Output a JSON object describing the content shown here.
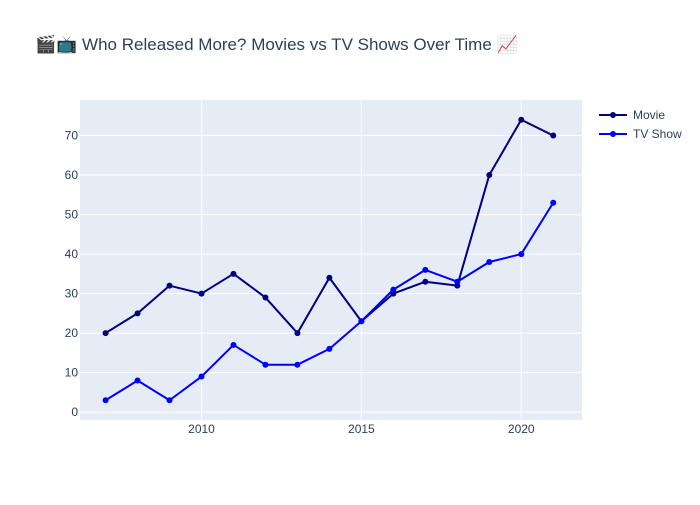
{
  "chart_data": {
    "type": "line",
    "title": "🎬📺 Who Released More? Movies vs TV Shows Over Time 📈",
    "xlabel": "",
    "ylabel": "",
    "x": [
      2007,
      2008,
      2009,
      2010,
      2011,
      2012,
      2013,
      2014,
      2015,
      2016,
      2017,
      2018,
      2019,
      2020,
      2021
    ],
    "series": [
      {
        "name": "Movie",
        "color": "#000080",
        "values": [
          20,
          25,
          32,
          30,
          35,
          29,
          20,
          34,
          23,
          30,
          33,
          32,
          60,
          74,
          70
        ]
      },
      {
        "name": "TV Show",
        "color": "#0000ff",
        "values": [
          3,
          8,
          3,
          9,
          17,
          12,
          12,
          16,
          23,
          31,
          36,
          33,
          38,
          40,
          53
        ]
      }
    ],
    "xlim": [
      2006.2,
      2021.9
    ],
    "ylim": [
      -2,
      79
    ],
    "x_ticks": [
      2010,
      2015,
      2020
    ],
    "y_ticks": [
      0,
      10,
      20,
      30,
      40,
      50,
      60,
      70
    ],
    "grid": true,
    "legend_position": "top-right",
    "plot_background": "#e5ecf6",
    "title_color": "#2a3f5f",
    "tick_color": "#2a3f5f"
  }
}
